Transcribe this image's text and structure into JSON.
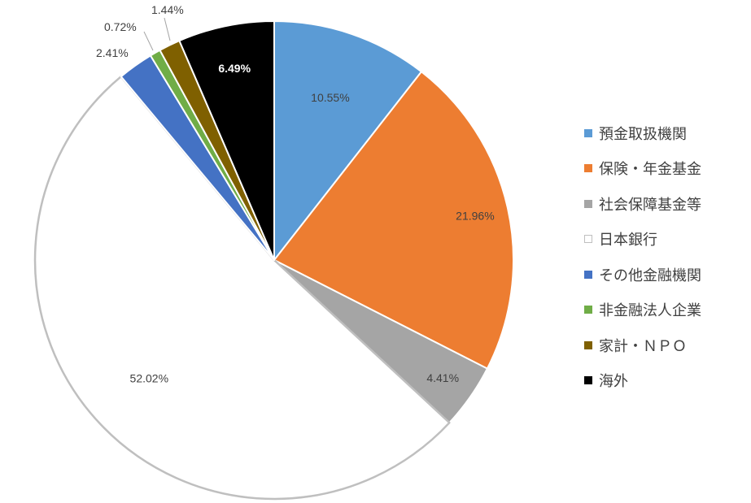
{
  "chart_data": {
    "type": "pie",
    "title": "",
    "start_angle_deg": 0,
    "direction": "clockwise",
    "legend_position": "right",
    "slices": [
      {
        "label": "預金取扱機関",
        "value": 10.55,
        "value_label": "10.55%",
        "color": "#5B9BD5"
      },
      {
        "label": "保険・年金基金",
        "value": 21.96,
        "value_label": "21.96%",
        "color": "#ED7D31"
      },
      {
        "label": "社会保障基金等",
        "value": 4.41,
        "value_label": "4.41%",
        "color": "#A5A5A5"
      },
      {
        "label": "日本銀行",
        "value": 52.02,
        "value_label": "52.02%",
        "color": "#FFFFFF",
        "stroke": "#BFBFBF"
      },
      {
        "label": "その他金融機関",
        "value": 2.41,
        "value_label": "2.41%",
        "color": "#4472C4"
      },
      {
        "label": "非金融法人企業",
        "value": 0.72,
        "value_label": "0.72%",
        "color": "#70AD47"
      },
      {
        "label": "家計・ＮＰＯ",
        "value": 1.44,
        "value_label": "1.44%",
        "color": "#7F6000"
      },
      {
        "label": "海外",
        "value": 6.49,
        "value_label": "6.49%",
        "color": "#000000"
      }
    ]
  }
}
